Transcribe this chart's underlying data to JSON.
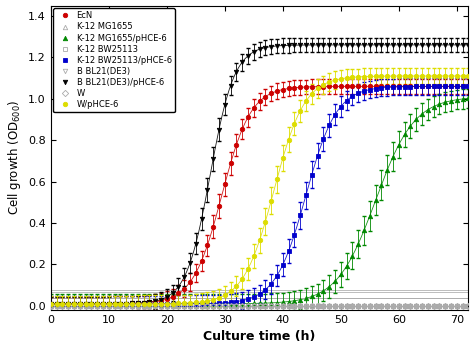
{
  "xlabel": "Culture time (h)",
  "ylabel": "Cell growth (OD$_{600}$)",
  "xlim": [
    0,
    72
  ],
  "ylim": [
    -0.02,
    1.45
  ],
  "xticks": [
    0,
    10,
    20,
    30,
    40,
    50,
    60,
    70
  ],
  "yticks": [
    0.0,
    0.2,
    0.4,
    0.6,
    0.8,
    1.0,
    1.2,
    1.4
  ],
  "series": [
    {
      "label": "EcN",
      "color": "#cc0000",
      "marker": "o",
      "fillstyle": "full",
      "midpoint": 29.5,
      "plateau": 1.05,
      "rate": 0.4,
      "baseline": 0.01,
      "errbar": 0.035
    },
    {
      "label": "K-12 MG1655",
      "color": "#aaaaaa",
      "marker": "^",
      "fillstyle": "none",
      "midpoint": 999,
      "plateau": 0.0,
      "rate": 0.3,
      "baseline": 0.065,
      "errbar": 0.004
    },
    {
      "label": "K-12 MG1655/pHCE-6",
      "color": "#008800",
      "marker": "^",
      "fillstyle": "full",
      "midpoint": 56.0,
      "plateau": 1.0,
      "rate": 0.3,
      "baseline": 0.01,
      "errbar": 0.045
    },
    {
      "label": "K-12 BW25113",
      "color": "#aaaaaa",
      "marker": "s",
      "fillstyle": "none",
      "midpoint": 999,
      "plateau": 0.0,
      "rate": 0.3,
      "baseline": 0.04,
      "errbar": 0.003
    },
    {
      "label": "K-12 BW25113/pHCE-6",
      "color": "#0000cc",
      "marker": "s",
      "fillstyle": "full",
      "midpoint": 44.0,
      "plateau": 1.05,
      "rate": 0.38,
      "baseline": 0.01,
      "errbar": 0.04
    },
    {
      "label": "B BL21(DE3)",
      "color": "#aaaaaa",
      "marker": "v",
      "fillstyle": "none",
      "midpoint": 999,
      "plateau": 0.0,
      "rate": 0.3,
      "baseline": 0.04,
      "errbar": 0.003
    },
    {
      "label": "B BL21(DE3)/pHCE-6",
      "color": "#000000",
      "marker": "v",
      "fillstyle": "full",
      "midpoint": 27.5,
      "plateau": 1.25,
      "rate": 0.48,
      "baseline": 0.01,
      "errbar": 0.035
    },
    {
      "label": "W",
      "color": "#aaaaaa",
      "marker": "D",
      "fillstyle": "none",
      "midpoint": 999,
      "plateau": 0.0,
      "rate": 0.3,
      "baseline": 0.075,
      "errbar": 0.004
    },
    {
      "label": "W/pHCE-6",
      "color": "#dddd00",
      "marker": "o",
      "fillstyle": "full",
      "midpoint": 38.5,
      "plateau": 1.1,
      "rate": 0.38,
      "baseline": 0.01,
      "errbar": 0.04
    }
  ],
  "figsize": [
    4.74,
    3.49
  ],
  "dpi": 100
}
